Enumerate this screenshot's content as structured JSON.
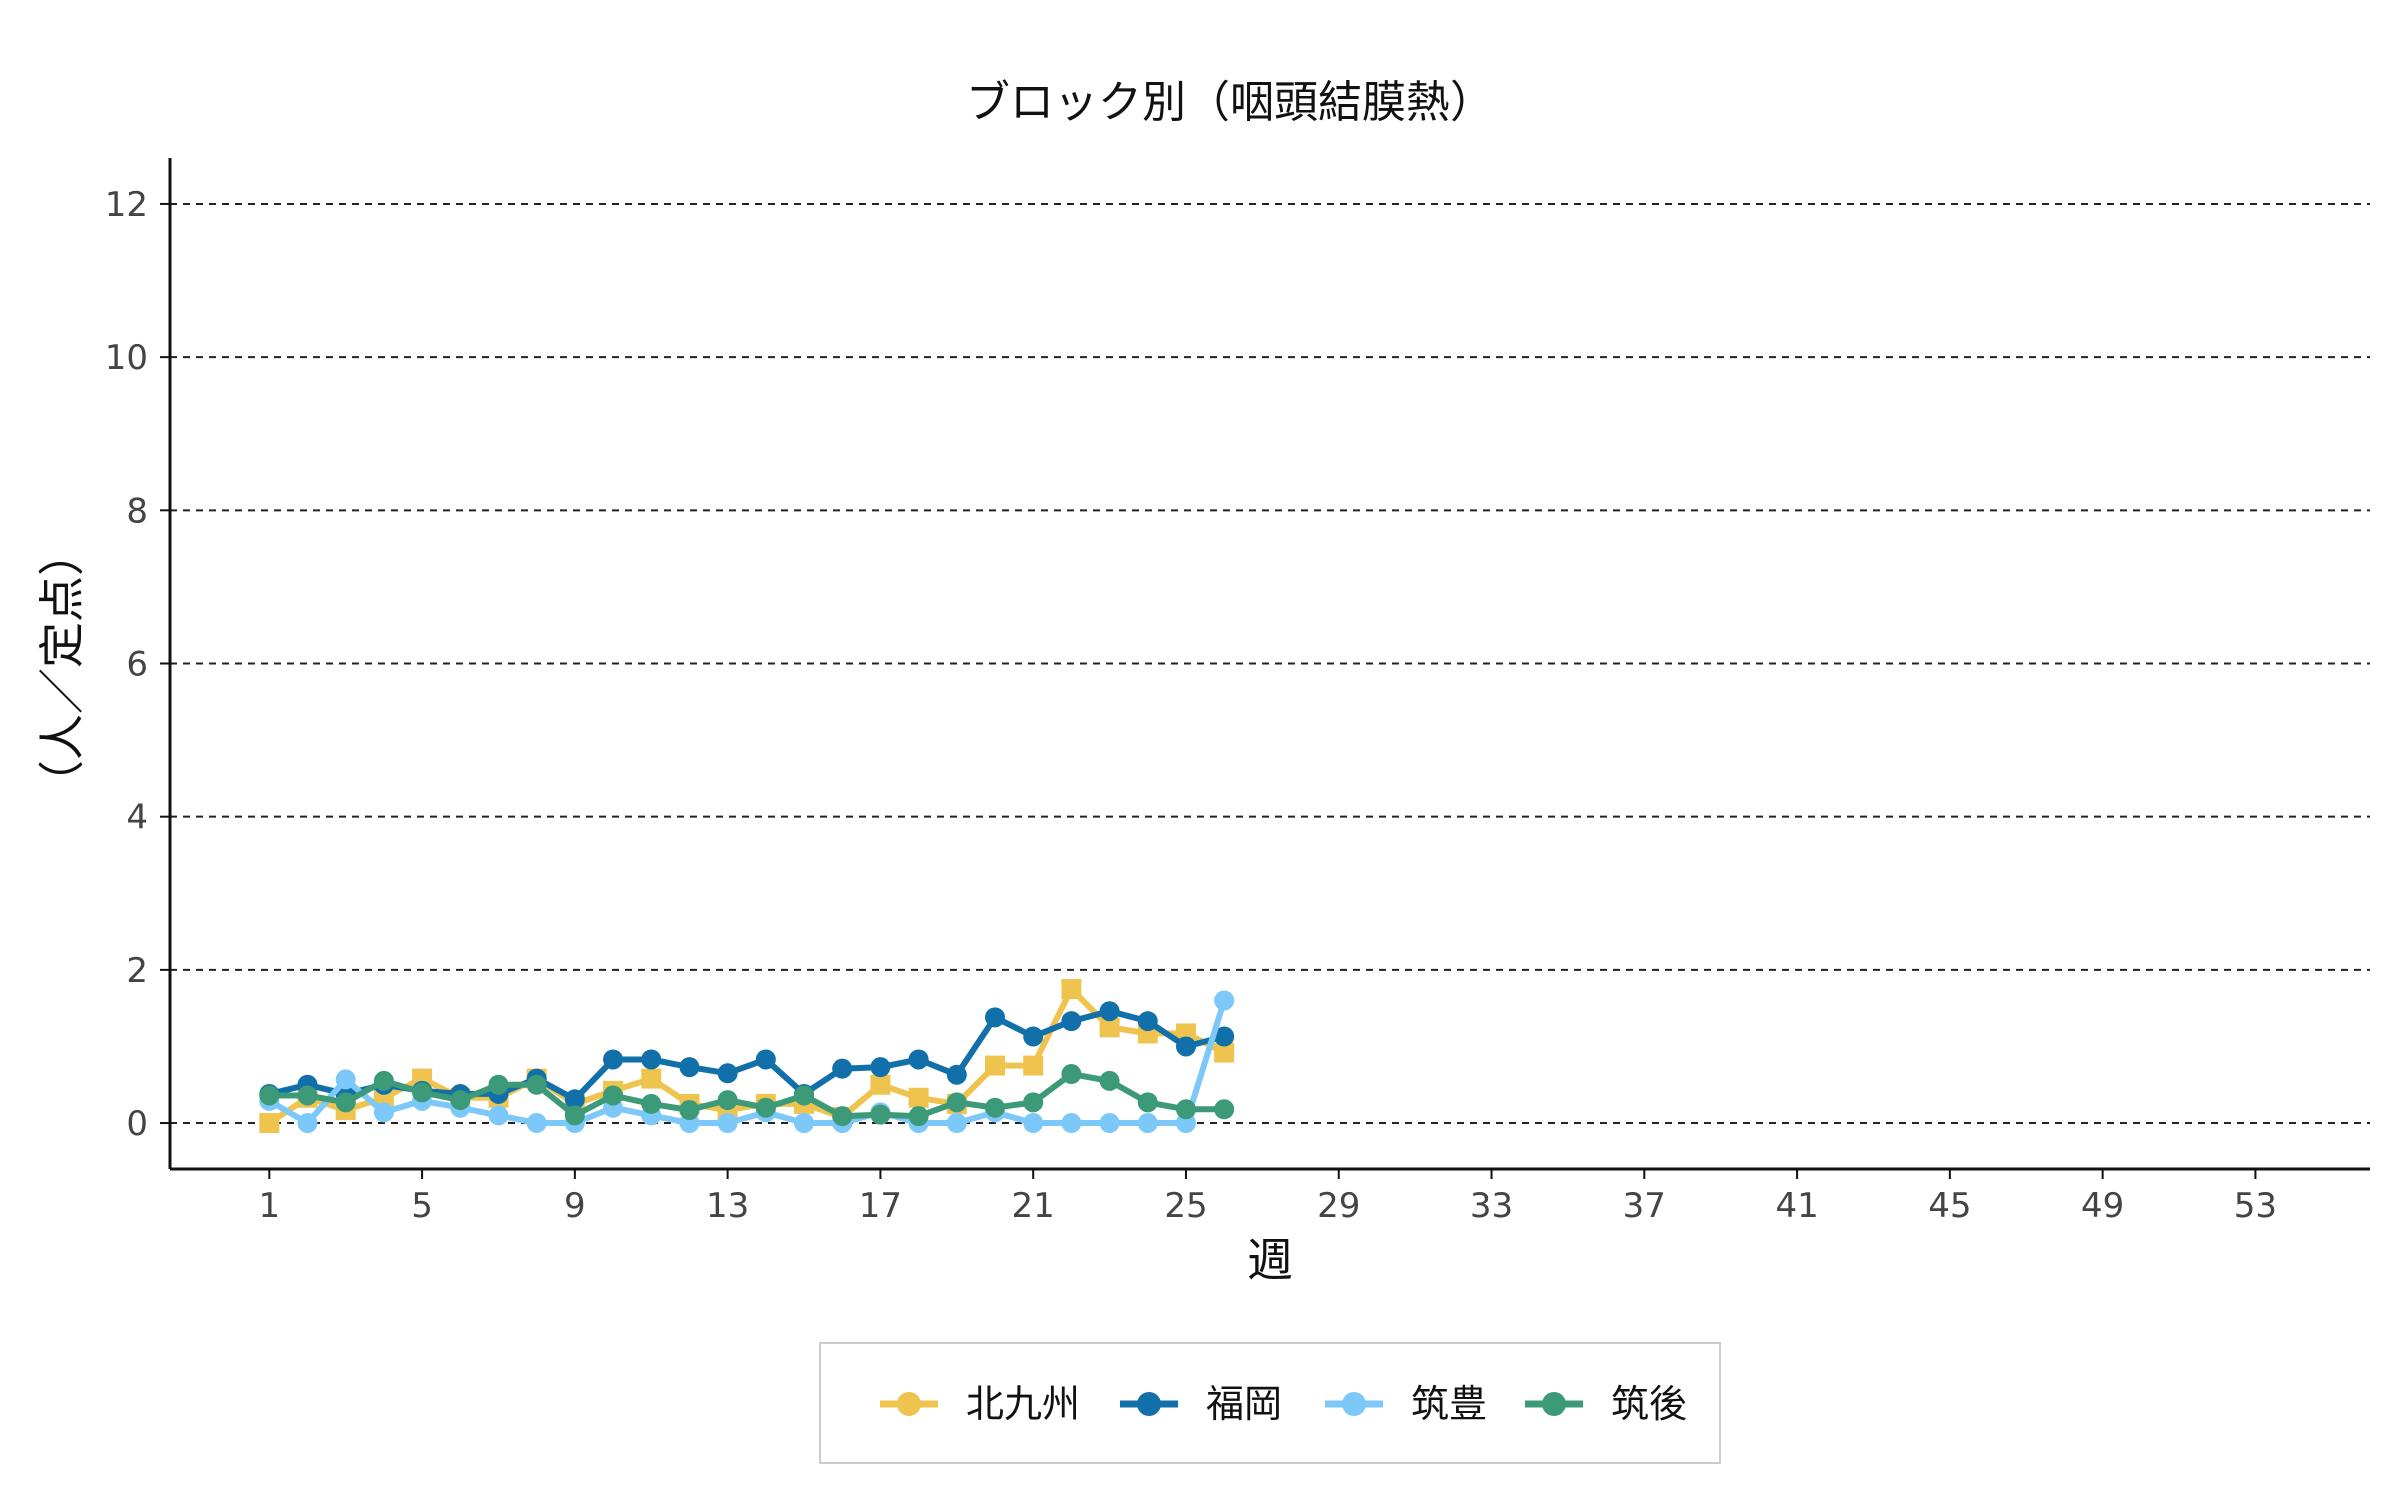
{
  "chart_data": {
    "type": "line",
    "title": "ブロック別（咽頭結膜熱）",
    "xlabel": "週",
    "ylabel": "（人／定点）",
    "xlim": [
      -1.6,
      56
    ],
    "ylim": [
      -0.6,
      12.6
    ],
    "x_ticks": [
      1,
      5,
      9,
      13,
      17,
      21,
      25,
      29,
      33,
      37,
      41,
      45,
      49,
      53
    ],
    "y_ticks": [
      0,
      2,
      4,
      6,
      8,
      10,
      12
    ],
    "grid": "horizontal-dashed",
    "legend_position": "bottom",
    "x": [
      1,
      2,
      3,
      4,
      5,
      6,
      7,
      8,
      9,
      10,
      11,
      12,
      13,
      14,
      15,
      16,
      17,
      18,
      19,
      20,
      21,
      22,
      23,
      24,
      25,
      26
    ],
    "series": [
      {
        "name": "北九州",
        "color": "#EFC44E",
        "marker": "square",
        "values": [
          0.0,
          0.33,
          0.17,
          0.33,
          0.58,
          0.33,
          0.33,
          0.58,
          0.25,
          0.42,
          0.58,
          0.25,
          0.17,
          0.25,
          0.25,
          0.08,
          0.5,
          0.33,
          0.25,
          0.75,
          0.75,
          1.75,
          1.25,
          1.17,
          1.17,
          0.92
        ]
      },
      {
        "name": "福岡",
        "color": "#1170AA",
        "marker": "circle",
        "values": [
          0.38,
          0.5,
          0.38,
          0.5,
          0.42,
          0.38,
          0.38,
          0.58,
          0.31,
          0.83,
          0.83,
          0.73,
          0.65,
          0.83,
          0.38,
          0.71,
          0.73,
          0.83,
          0.63,
          1.38,
          1.13,
          1.33,
          1.46,
          1.33,
          1.0,
          1.13
        ]
      },
      {
        "name": "筑豊",
        "color": "#7CC8F8",
        "marker": "circle",
        "values": [
          0.29,
          0.0,
          0.57,
          0.14,
          0.29,
          0.2,
          0.1,
          0.0,
          0.0,
          0.2,
          0.1,
          0.0,
          0.0,
          0.14,
          0.0,
          0.0,
          0.14,
          0.0,
          0.0,
          0.14,
          0.0,
          0.0,
          0.0,
          0.0,
          0.0,
          1.6
        ]
      },
      {
        "name": "筑後",
        "color": "#3C9A78",
        "marker": "circle",
        "values": [
          0.36,
          0.36,
          0.27,
          0.55,
          0.4,
          0.3,
          0.5,
          0.5,
          0.1,
          0.36,
          0.25,
          0.17,
          0.3,
          0.2,
          0.36,
          0.09,
          0.11,
          0.09,
          0.27,
          0.2,
          0.27,
          0.64,
          0.55,
          0.27,
          0.18,
          0.18
        ]
      }
    ]
  }
}
